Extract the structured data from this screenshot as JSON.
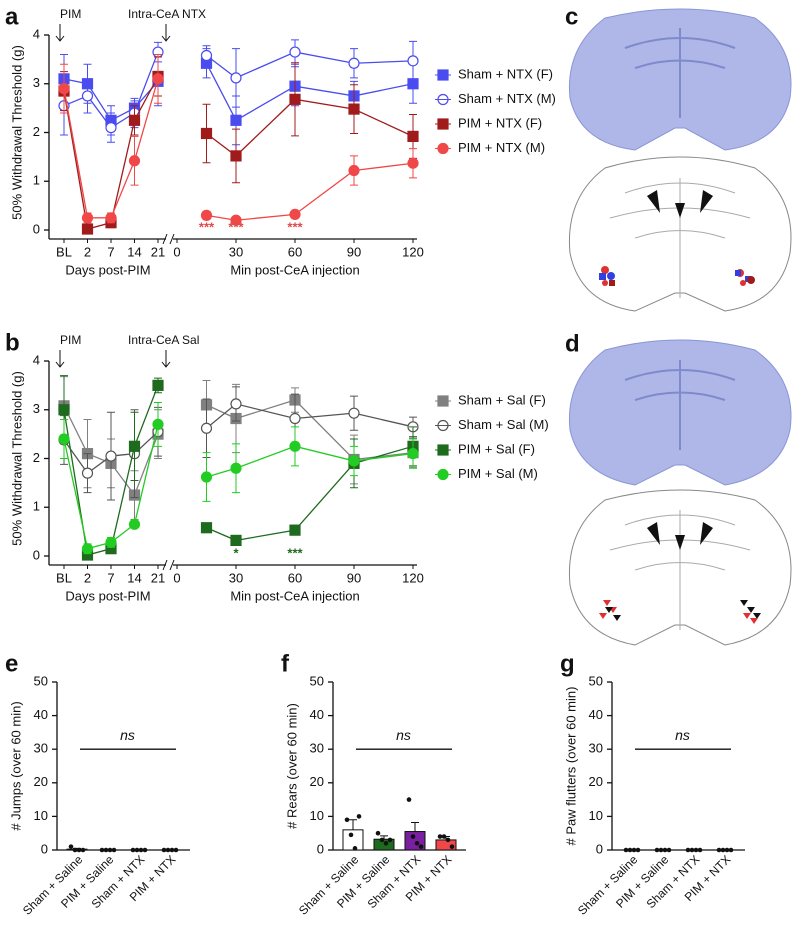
{
  "chart_data": [
    {
      "type": "line",
      "panel": "a",
      "ylabel": "50% Withdrawal Threshold (g)",
      "ylim": [
        0,
        4
      ],
      "yticks": [
        0,
        1,
        2,
        3,
        4
      ],
      "categories": [
        "BL",
        "2",
        "7",
        "14",
        "21"
      ],
      "xlabel": "Days post-PIM",
      "x": [
        15,
        30,
        60,
        90,
        120
      ],
      "xlim": [
        0,
        120
      ],
      "xticks": [
        0,
        30,
        60,
        90,
        120
      ],
      "x2label": "Min post-CeA injection",
      "arrows": [
        "PIM",
        "Intra-CeA NTX"
      ],
      "annotations": [
        {
          "text": "***",
          "x": 15,
          "color": "#e04a4a"
        },
        {
          "text": "***",
          "x": 30,
          "color": "#e04a4a"
        },
        {
          "text": "***",
          "x": 60,
          "color": "#e04a4a"
        }
      ],
      "series": [
        {
          "name": "Sham + NTX (F)",
          "color": "#4a4cf0",
          "marker": "square",
          "filled": true,
          "values": [
            3.1,
            3.0,
            2.25,
            2.5,
            3.05
          ],
          "errors": [
            0.5,
            0.4,
            0.3,
            0.15,
            0.5
          ],
          "min_values": [
            3.42,
            2.25,
            2.95,
            2.75,
            3.0
          ],
          "min_errors": [
            0.3,
            0.5,
            0.4,
            0.3,
            0.4
          ]
        },
        {
          "name": "Sham + NTX (M)",
          "color": "#4a4cf0",
          "marker": "circle",
          "filled": false,
          "values": [
            2.55,
            2.75,
            2.1,
            2.4,
            3.65
          ],
          "errors": [
            0.6,
            0.35,
            0.3,
            0.3,
            0.2
          ],
          "min_values": [
            3.58,
            3.12,
            3.65,
            3.42,
            3.47
          ],
          "min_errors": [
            0.2,
            0.6,
            0.25,
            0.3,
            0.4
          ]
        },
        {
          "name": "PIM + NTX (F)",
          "color": "#a01c1c",
          "marker": "square",
          "filled": true,
          "values": [
            2.85,
            0.02,
            0.15,
            2.25,
            3.15
          ],
          "errors": [
            0.4,
            0.05,
            0.1,
            0.3,
            0.4
          ],
          "min_values": [
            1.98,
            1.52,
            2.68,
            2.48,
            1.92
          ],
          "min_errors": [
            0.6,
            0.55,
            0.75,
            0.5,
            0.45
          ]
        },
        {
          "name": "PIM + NTX (M)",
          "color": "#f04848",
          "marker": "circle",
          "filled": true,
          "values": [
            2.9,
            0.25,
            0.25,
            1.42,
            3.1
          ],
          "errors": [
            0.5,
            0.1,
            0.1,
            0.5,
            0.5
          ],
          "min_values": [
            0.3,
            0.2,
            0.32,
            1.22,
            1.37
          ],
          "min_errors": [
            0.08,
            0.04,
            0.04,
            0.3,
            0.3
          ]
        }
      ]
    },
    {
      "type": "line",
      "panel": "b",
      "ylabel": "50% Withdrawal Threshold (g)",
      "ylim": [
        0,
        4
      ],
      "yticks": [
        0,
        1,
        2,
        3,
        4
      ],
      "categories": [
        "BL",
        "2",
        "7",
        "14",
        "21"
      ],
      "xlabel": "Days post-PIM",
      "x": [
        15,
        30,
        60,
        90,
        120
      ],
      "xlim": [
        0,
        120
      ],
      "xticks": [
        0,
        30,
        60,
        90,
        120
      ],
      "x2label": "Min post-CeA injection",
      "arrows": [
        "PIM",
        "Intra-CeA Sal"
      ],
      "annotations": [
        {
          "text": "*",
          "x": 30,
          "color": "#1e6b1e"
        },
        {
          "text": "***",
          "x": 60,
          "color": "#1e6b1e"
        }
      ],
      "series": [
        {
          "name": "Sham + Sal (F)",
          "color": "#808080",
          "marker": "square",
          "filled": true,
          "values": [
            3.08,
            2.1,
            1.9,
            1.25,
            2.5
          ],
          "errors": [
            0.6,
            0.7,
            0.5,
            0.5,
            0.5
          ],
          "min_values": [
            3.1,
            2.82,
            3.2,
            1.98,
            2.12
          ],
          "min_errors": [
            0.5,
            0.7,
            0.25,
            0.5,
            0.3
          ]
        },
        {
          "name": "Sham + Sal (M)",
          "color": "#555555",
          "marker": "circle",
          "filled": false,
          "values": [
            2.38,
            1.7,
            2.05,
            2.1,
            2.55
          ],
          "errors": [
            0.5,
            0.4,
            0.9,
            0.9,
            0.5
          ],
          "min_values": [
            2.62,
            3.12,
            2.82,
            2.93,
            2.65
          ],
          "min_errors": [
            0.6,
            0.35,
            0.5,
            0.35,
            0.2
          ]
        },
        {
          "name": "PIM + Sal (F)",
          "color": "#1e6b1e",
          "marker": "square",
          "filled": true,
          "values": [
            3.0,
            0.02,
            0.15,
            2.25,
            3.5
          ],
          "errors": [
            0.7,
            0.05,
            0.08,
            0.7,
            0.15
          ],
          "min_values": [
            0.58,
            0.32,
            0.53,
            1.9,
            2.25
          ],
          "min_errors": [
            0.04,
            0.08,
            0.1,
            0.5,
            0.4
          ]
        },
        {
          "name": "PIM + Sal (M)",
          "color": "#22cc22",
          "marker": "circle",
          "filled": true,
          "values": [
            2.4,
            0.15,
            0.28,
            0.65,
            2.7
          ],
          "errors": [
            0.4,
            0.1,
            0.1,
            0.06,
            0.45
          ],
          "min_values": [
            1.62,
            1.8,
            2.25,
            1.95,
            2.1
          ],
          "min_errors": [
            0.5,
            0.5,
            0.4,
            0.3,
            0.3
          ]
        }
      ]
    },
    {
      "type": "bar",
      "panel": "e",
      "ylabel": "# Jumps (over 60 min)",
      "ylim": [
        0,
        50
      ],
      "yticks": [
        0,
        10,
        20,
        30,
        40,
        50
      ],
      "categories": [
        "Sham + Saline",
        "PIM + Saline",
        "Sham + NTX",
        "PIM + NTX"
      ],
      "colors": [
        "#ffffff",
        "#1e6b1e",
        "#7a1fa0",
        "#f04848"
      ],
      "values": [
        0.25,
        0,
        0,
        0
      ],
      "errors": [
        0.25,
        0,
        0,
        0
      ],
      "points": [
        [
          1,
          0,
          0,
          0
        ],
        [
          0,
          0,
          0,
          0
        ],
        [
          0,
          0,
          0,
          0
        ],
        [
          0,
          0,
          0,
          0
        ]
      ],
      "annotation": {
        "text": "ns",
        "value": 30
      }
    },
    {
      "type": "bar",
      "panel": "f",
      "ylabel": "# Rears (over 60 min)",
      "ylim": [
        0,
        50
      ],
      "yticks": [
        0,
        10,
        20,
        30,
        40,
        50
      ],
      "categories": [
        "Sham + Saline",
        "PIM + Saline",
        "Sham + NTX",
        "PIM + NTX"
      ],
      "colors": [
        "#ffffff",
        "#1e6b1e",
        "#7a1fa0",
        "#f04848"
      ],
      "values": [
        6,
        3.2,
        5.5,
        3
      ],
      "errors": [
        3,
        1,
        2.7,
        1
      ],
      "points": [
        [
          9,
          4.5,
          0.5,
          10
        ],
        [
          5,
          3,
          2,
          3
        ],
        [
          15,
          4,
          2,
          1
        ],
        [
          4,
          4,
          3,
          1
        ]
      ],
      "annotation": {
        "text": "ns",
        "value": 30
      }
    },
    {
      "type": "bar",
      "panel": "g",
      "ylabel": "# Paw flutters (over 60 min)",
      "ylim": [
        0,
        50
      ],
      "yticks": [
        0,
        10,
        20,
        30,
        40,
        50
      ],
      "categories": [
        "Sham + Saline",
        "PIM + Saline",
        "Sham + NTX",
        "PIM + NTX"
      ],
      "colors": [
        "#ffffff",
        "#1e6b1e",
        "#7a1fa0",
        "#f04848"
      ],
      "values": [
        0,
        0,
        0,
        0
      ],
      "errors": [
        0,
        0,
        0,
        0
      ],
      "points": [
        [
          0,
          0,
          0,
          0
        ],
        [
          0,
          0,
          0,
          0
        ],
        [
          0,
          0,
          0,
          0
        ],
        [
          0,
          0,
          0,
          0
        ]
      ],
      "annotation": {
        "text": "ns",
        "value": 30
      }
    }
  ],
  "image_panels": [
    {
      "letter": "c"
    },
    {
      "letter": "d"
    }
  ]
}
